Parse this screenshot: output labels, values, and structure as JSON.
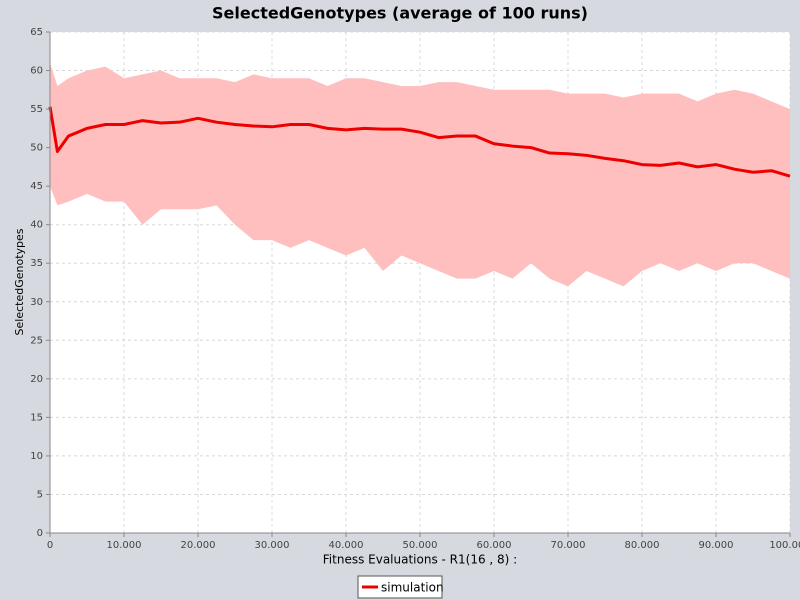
{
  "chart_data": {
    "type": "line",
    "title": "SelectedGenotypes (average of 100 runs)",
    "x_label": "Fitness Evaluations - R1(16 , 8) :",
    "y_label": "SelectedGenotypes",
    "x": [
      0,
      1000,
      2500,
      5000,
      7500,
      10000,
      12500,
      15000,
      17500,
      20000,
      22500,
      25000,
      27500,
      30000,
      32500,
      35000,
      37500,
      40000,
      42500,
      45000,
      47500,
      50000,
      52500,
      55000,
      57500,
      60000,
      62500,
      65000,
      67500,
      70000,
      72500,
      75000,
      77500,
      80000,
      82500,
      85000,
      87500,
      90000,
      92500,
      95000,
      97500,
      100000
    ],
    "series": [
      {
        "name": "simulation",
        "color": "#ee0000",
        "values": [
          55.3,
          49.5,
          51.5,
          52.5,
          53,
          53,
          53.5,
          53.2,
          53.3,
          53.8,
          53.3,
          53,
          52.8,
          52.7,
          53,
          53,
          52.5,
          52.3,
          52.5,
          52.4,
          52.4,
          52,
          51.3,
          51.5,
          51.5,
          50.5,
          50.2,
          50,
          49.3,
          49.2,
          49,
          48.6,
          48.3,
          47.8,
          47.7,
          48,
          47.5,
          47.8,
          47.2,
          46.8,
          47,
          46.3
        ]
      }
    ],
    "band": {
      "color": "#ffbfbf",
      "upper": [
        61,
        58,
        59,
        60,
        60.5,
        59,
        59.5,
        60,
        59,
        59,
        59,
        58.5,
        59.5,
        59,
        59,
        59,
        58,
        59,
        59,
        58.5,
        58,
        58,
        58.5,
        58.5,
        58,
        57.5,
        57.5,
        57.5,
        57.5,
        57,
        57,
        57,
        56.5,
        57,
        57,
        57,
        56,
        57,
        57.5,
        57,
        56,
        55
      ],
      "lower": [
        45,
        42.5,
        43,
        44,
        43,
        43,
        40,
        42,
        42,
        42,
        42.5,
        40,
        38,
        38,
        37,
        38,
        37,
        36,
        37,
        34,
        36,
        35,
        34,
        33,
        33,
        34,
        33,
        35,
        33,
        32,
        34,
        33,
        32,
        34,
        35,
        34,
        35,
        34,
        35,
        35,
        34,
        33
      ]
    },
    "xlim": [
      0,
      100000
    ],
    "xticks": [
      0,
      {
        "value": 10000,
        "label": "10.000"
      },
      {
        "value": 20000,
        "label": "20.000"
      },
      {
        "value": 30000,
        "label": "30.000"
      },
      {
        "value": 40000,
        "label": "40.000"
      },
      {
        "value": 50000,
        "label": "50.000"
      },
      {
        "value": 60000,
        "label": "60.000"
      },
      {
        "value": 70000,
        "label": "70.000"
      },
      {
        "value": 80000,
        "label": "80.000"
      },
      {
        "value": 90000,
        "label": "90.000"
      },
      {
        "value": 100000,
        "label": "100.000"
      }
    ],
    "ylim": [
      0,
      65
    ],
    "yticks": [
      0,
      5,
      10,
      15,
      20,
      25,
      30,
      35,
      40,
      45,
      50,
      55,
      60,
      65
    ],
    "grid": true,
    "legend": "bottom"
  }
}
